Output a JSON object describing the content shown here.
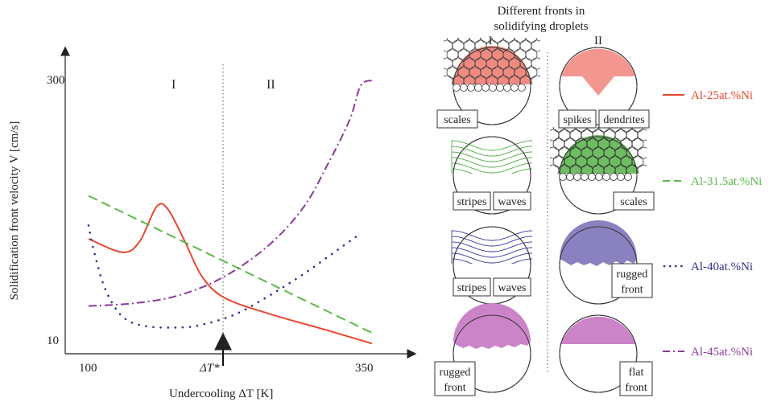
{
  "chart_data": {
    "type": "line",
    "xlabel": "Undercooling ΔT [K]",
    "ylabel": "Solidification front velocity V [cm/s]",
    "x_ticks": [
      "100",
      "ΔT*",
      "350"
    ],
    "y_ticks": [
      "300",
      "10"
    ],
    "region_labels": [
      "I",
      "II"
    ],
    "x_range": [
      100,
      350
    ],
    "series": [
      {
        "name": "Al-25at.%Ni",
        "color": "#e8472f",
        "style": "solid",
        "points": [
          [
            100,
            0.41
          ],
          [
            130,
            0.36
          ],
          [
            145,
            0.4
          ],
          [
            160,
            0.53
          ],
          [
            170,
            0.52
          ],
          [
            185,
            0.4
          ],
          [
            200,
            0.27
          ],
          [
            220,
            0.19
          ],
          [
            260,
            0.13
          ],
          [
            310,
            0.07
          ],
          [
            350,
            0.02
          ]
        ]
      },
      {
        "name": "Al-31.5at.%Ni",
        "color": "#5db84a",
        "style": "dashed",
        "points": [
          [
            100,
            0.57
          ],
          [
            350,
            0.06
          ]
        ]
      },
      {
        "name": "Al-40at.%Ni",
        "color": "#2f2f8e",
        "style": "dotted",
        "points": [
          [
            100,
            0.46
          ],
          [
            105,
            0.36
          ],
          [
            115,
            0.22
          ],
          [
            130,
            0.12
          ],
          [
            150,
            0.085
          ],
          [
            180,
            0.08
          ],
          [
            200,
            0.09
          ],
          [
            230,
            0.13
          ],
          [
            260,
            0.2
          ],
          [
            290,
            0.28
          ],
          [
            320,
            0.37
          ],
          [
            340,
            0.43
          ]
        ]
      },
      {
        "name": "Al-45at.%Ni",
        "color": "#8a3b9a",
        "style": "dash-dot",
        "points": [
          [
            100,
            0.16
          ],
          [
            140,
            0.17
          ],
          [
            180,
            0.2
          ],
          [
            220,
            0.27
          ],
          [
            260,
            0.39
          ],
          [
            290,
            0.53
          ],
          [
            310,
            0.68
          ],
          [
            330,
            0.85
          ],
          [
            340,
            0.98
          ],
          [
            350,
            1.0
          ]
        ]
      }
    ]
  },
  "droplets": {
    "title_line1": "Different fronts in",
    "title_line2": "solidifying droplets",
    "col1": "I",
    "col2": "II",
    "rows": [
      {
        "left": [
          "scales"
        ],
        "right_a": [
          "spikes"
        ],
        "right_b": [
          "dendrites"
        ],
        "legend": "Al-25at.%Ni"
      },
      {
        "left_a": [
          "stripes"
        ],
        "left_b": [
          "waves"
        ],
        "right": [
          "scales"
        ],
        "legend": "Al-31.5at.%Ni"
      },
      {
        "left_a": [
          "stripes"
        ],
        "left_b": [
          "waves"
        ],
        "right": [
          "rugged",
          "front"
        ],
        "legend": "Al-40at.%Ni"
      },
      {
        "left": [
          "rugged",
          "front"
        ],
        "right": [
          "flat",
          "front"
        ],
        "legend": "Al-45at.%Ni"
      }
    ]
  }
}
